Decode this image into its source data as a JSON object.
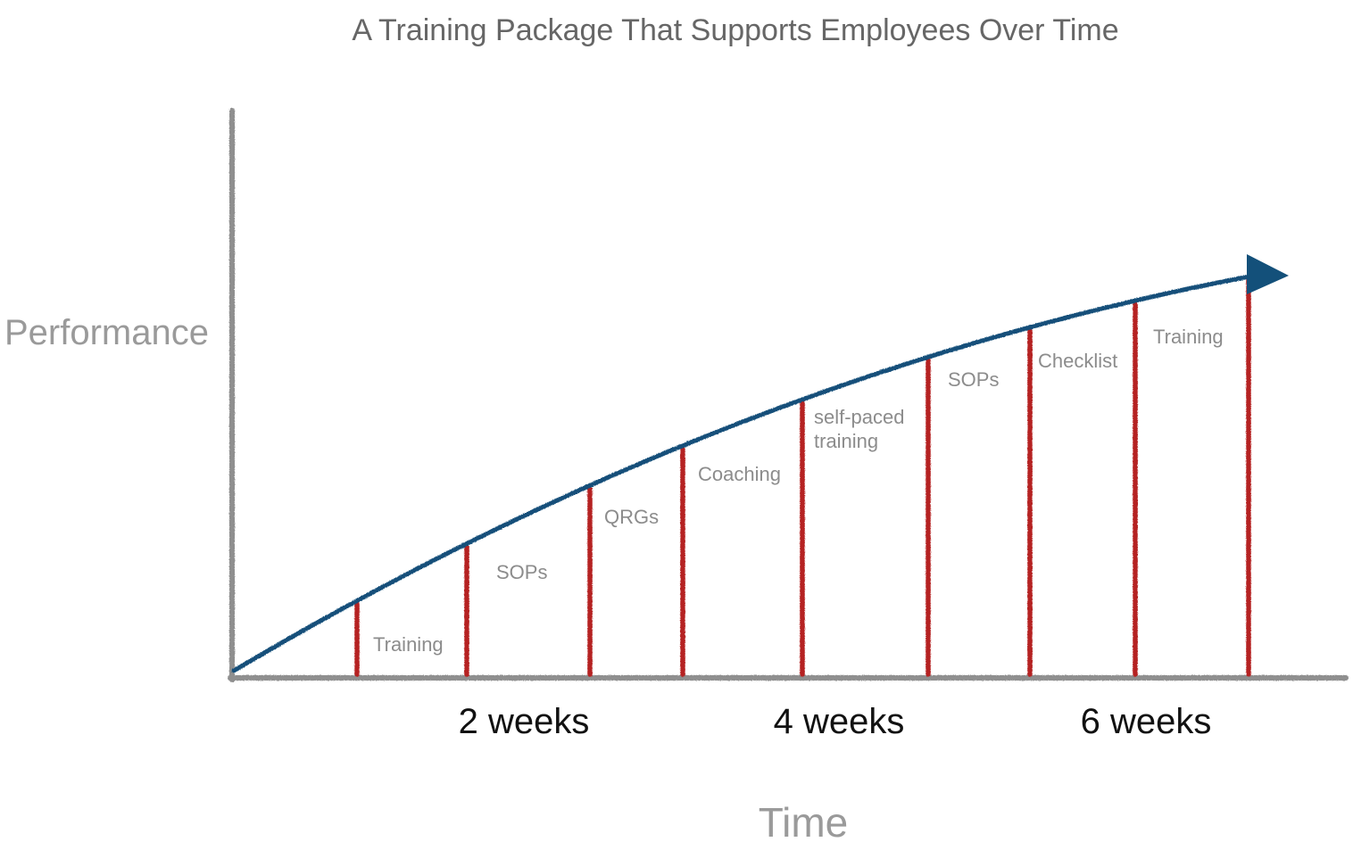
{
  "diagram": {
    "title": "A Training Package That Supports Employees Over Time",
    "y_axis_label": "Performance",
    "x_axis_label": "Time",
    "ticks": [
      "2 weeks",
      "4 weeks",
      "6 weeks"
    ],
    "interventions": [
      {
        "line1": "Training",
        "line2": ""
      },
      {
        "line1": "SOPs",
        "line2": ""
      },
      {
        "line1": "QRGs",
        "line2": ""
      },
      {
        "line1": "Coaching",
        "line2": ""
      },
      {
        "line1": "self-paced",
        "line2": "training"
      },
      {
        "line1": "SOPs",
        "line2": ""
      },
      {
        "line1": "Checklist",
        "line2": ""
      },
      {
        "line1": "Training",
        "line2": ""
      }
    ],
    "colors": {
      "axis": "#8f8f8f",
      "curve": "#13507a",
      "arrowhead": "#13507a",
      "bars": "#b52222",
      "title": "#666666",
      "annotation": "#8c8c8c"
    }
  }
}
